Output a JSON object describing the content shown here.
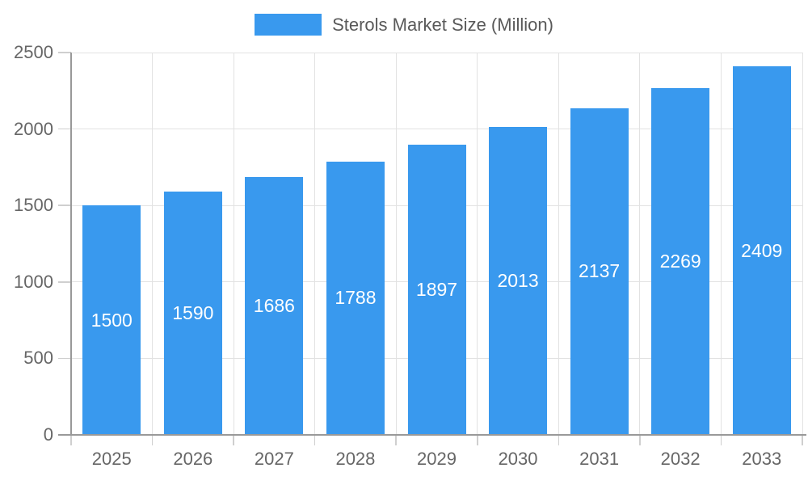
{
  "legend": {
    "label": "Sterols Market Size (Million)"
  },
  "chart_data": {
    "type": "bar",
    "title": "Sterols Market Size (Million)",
    "series_name": "Sterols Market Size (Million)",
    "categories": [
      "2025",
      "2026",
      "2027",
      "2028",
      "2029",
      "2030",
      "2031",
      "2032",
      "2033"
    ],
    "values": [
      1500,
      1590,
      1686,
      1788,
      1897,
      2013,
      2137,
      2269,
      2409
    ],
    "xlabel": "",
    "ylabel": "",
    "ylim": [
      0,
      2500
    ],
    "yticks": [
      0,
      500,
      1000,
      1500,
      2000,
      2500
    ],
    "grid": true,
    "legend_position": "top",
    "value_labels": "centered-inside-bars",
    "colors": {
      "bar": "#3999EE",
      "grid": "#E2E2E2",
      "tick": "#CFCFCF",
      "axis": "#999999",
      "axis_text": "#666666",
      "legend_text": "#595959",
      "value_label": "#FFFFFF",
      "background": "#FFFFFF"
    }
  }
}
